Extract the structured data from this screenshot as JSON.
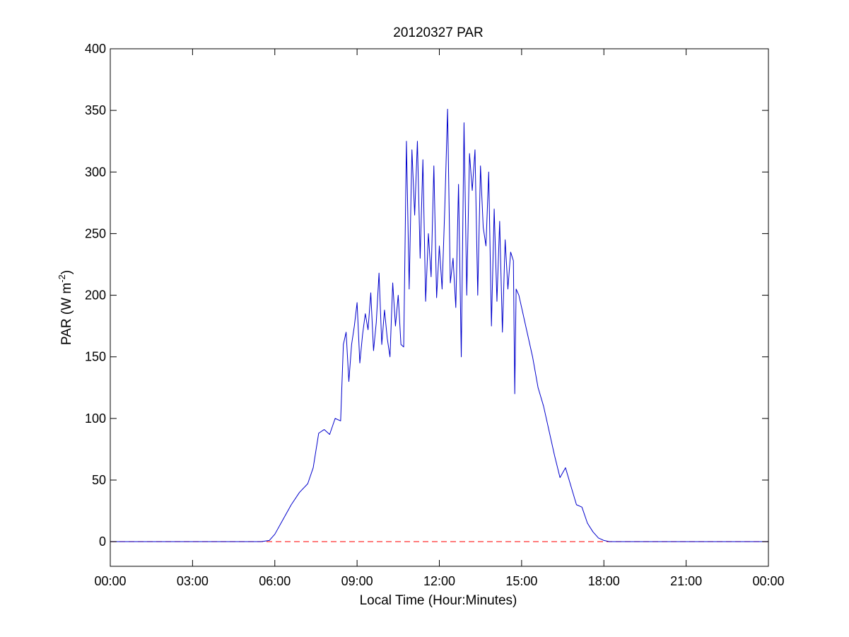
{
  "chart_data": {
    "type": "line",
    "title": "20120327 PAR",
    "xlabel": "Local Time (Hour:Minutes)",
    "ylabel": {
      "main": "PAR (W m",
      "superscript": "-2",
      "close": ")"
    },
    "x_unit": "hours",
    "xlim": [
      0,
      24
    ],
    "ylim": [
      -20,
      400
    ],
    "x_ticks": [
      0,
      3,
      6,
      9,
      12,
      15,
      18,
      21,
      24
    ],
    "x_tick_labels": [
      "00:00",
      "03:00",
      "06:00",
      "09:00",
      "12:00",
      "15:00",
      "18:00",
      "21:00",
      "00:00"
    ],
    "y_ticks": [
      0,
      50,
      100,
      150,
      200,
      250,
      300,
      350,
      400
    ],
    "y_tick_labels": [
      "0",
      "50",
      "100",
      "150",
      "200",
      "250",
      "300",
      "350",
      "400"
    ],
    "grid": false,
    "colors": {
      "series": "#0000cc",
      "baseline": "#ff0000"
    },
    "baseline": {
      "y": 0,
      "style": "dashed"
    },
    "series": [
      {
        "x": [
          0,
          5.5,
          5.8,
          6.0,
          6.3,
          6.6,
          6.9,
          7.2,
          7.4,
          7.6,
          7.8,
          8.0,
          8.2,
          8.4,
          8.5,
          8.6,
          8.7,
          8.8,
          8.9,
          9.0,
          9.1,
          9.2,
          9.3,
          9.4,
          9.5,
          9.6,
          9.7,
          9.8,
          9.9,
          10.0,
          10.1,
          10.2,
          10.3,
          10.4,
          10.5,
          10.6,
          10.7,
          10.8,
          10.9,
          11.0,
          11.1,
          11.2,
          11.3,
          11.4,
          11.5,
          11.6,
          11.7,
          11.8,
          11.9,
          12.0,
          12.1,
          12.2,
          12.3,
          12.4,
          12.5,
          12.6,
          12.7,
          12.8,
          12.9,
          13.0,
          13.1,
          13.2,
          13.3,
          13.4,
          13.5,
          13.6,
          13.7,
          13.8,
          13.9,
          14.0,
          14.1,
          14.2,
          14.3,
          14.4,
          14.5,
          14.6,
          14.7,
          14.75,
          14.8,
          14.9,
          15.0,
          15.2,
          15.4,
          15.6,
          15.8,
          16.0,
          16.2,
          16.4,
          16.6,
          16.8,
          17.0,
          17.2,
          17.4,
          17.6,
          17.8,
          18.0,
          18.2,
          18.5,
          24
        ],
        "y": [
          0,
          0,
          1,
          6,
          18,
          30,
          40,
          47,
          60,
          88,
          91,
          87,
          100,
          98,
          160,
          170,
          130,
          160,
          175,
          194,
          145,
          168,
          185,
          172,
          202,
          155,
          178,
          218,
          160,
          188,
          165,
          150,
          210,
          175,
          200,
          160,
          158,
          325,
          205,
          318,
          265,
          325,
          230,
          310,
          195,
          250,
          215,
          305,
          198,
          240,
          205,
          272,
          351,
          210,
          230,
          190,
          290,
          150,
          340,
          200,
          315,
          285,
          318,
          200,
          305,
          255,
          240,
          300,
          175,
          270,
          195,
          260,
          170,
          245,
          205,
          235,
          228,
          120,
          205,
          200,
          190,
          170,
          150,
          125,
          110,
          90,
          70,
          52,
          60,
          45,
          30,
          28,
          15,
          8,
          3,
          1,
          0,
          0,
          0
        ]
      }
    ]
  }
}
